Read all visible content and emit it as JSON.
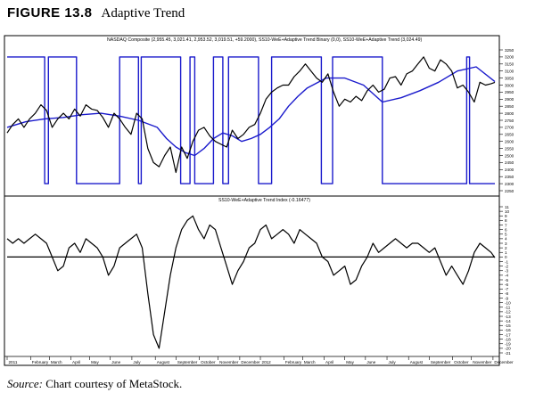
{
  "figure": {
    "number": "FIGURE 13.8",
    "caption": "Adaptive Trend"
  },
  "source": {
    "label": "Source:",
    "text": "Chart courtesy of MetaStock."
  },
  "colors": {
    "price": "#000000",
    "indicator": "#1a1acc",
    "zero_line": "#000000"
  },
  "chart_data": [
    {
      "type": "line",
      "title": "NASDAQ Composite (2,955.45, 3,021.41, 2,953.52, 3,019.51, +59.2000), SS10-WeE+Adaptive Trend Binary (0,0), SS10-WeE+Adaptive Trend (3,024.49)",
      "ylim": [
        2250,
        3250
      ],
      "yticks": [
        2250,
        2300,
        2350,
        2400,
        2450,
        2500,
        2550,
        2600,
        2650,
        2700,
        2750,
        2800,
        2850,
        2900,
        2950,
        3000,
        3050,
        3100,
        3150,
        3200,
        3250
      ],
      "xlim": [
        0,
        520
      ],
      "series": [
        {
          "name": "NASDAQ Composite",
          "x": [
            0,
            6,
            12,
            18,
            24,
            30,
            36,
            42,
            48,
            54,
            60,
            66,
            72,
            78,
            84,
            90,
            96,
            102,
            108,
            114,
            120,
            126,
            132,
            138,
            144,
            150,
            156,
            162,
            168,
            174,
            180,
            186,
            192,
            198,
            204,
            210,
            216,
            222,
            228,
            234,
            240,
            246,
            252,
            258,
            264,
            270,
            276,
            282,
            288,
            294,
            300,
            306,
            312,
            318,
            324,
            330,
            336,
            342,
            348,
            354,
            360,
            366,
            372,
            378,
            384,
            390,
            396,
            402,
            408,
            414,
            420,
            426,
            432,
            438,
            444,
            450,
            456,
            462,
            468,
            474,
            480,
            486,
            492,
            498,
            504,
            510,
            516,
            520
          ],
          "values": [
            2660,
            2720,
            2760,
            2700,
            2760,
            2800,
            2860,
            2820,
            2700,
            2760,
            2800,
            2760,
            2830,
            2780,
            2860,
            2830,
            2820,
            2770,
            2700,
            2800,
            2760,
            2700,
            2650,
            2800,
            2760,
            2550,
            2450,
            2420,
            2500,
            2560,
            2380,
            2560,
            2480,
            2600,
            2680,
            2700,
            2640,
            2600,
            2580,
            2560,
            2680,
            2620,
            2650,
            2700,
            2720,
            2800,
            2900,
            2950,
            2980,
            3000,
            3000,
            3060,
            3100,
            3150,
            3100,
            3050,
            3020,
            3080,
            2950,
            2850,
            2900,
            2880,
            2920,
            2890,
            2960,
            3000,
            2950,
            2970,
            3050,
            3060,
            3000,
            3080,
            3100,
            3150,
            3200,
            3120,
            3100,
            3180,
            3150,
            3100,
            2980,
            3000,
            2950,
            2880,
            3020,
            3000,
            3010,
            3019.51
          ]
        },
        {
          "name": "SS10-WeE+Adaptive Trend",
          "x": [
            0,
            20,
            40,
            60,
            80,
            100,
            120,
            140,
            160,
            170,
            180,
            190,
            200,
            210,
            220,
            230,
            240,
            250,
            260,
            270,
            280,
            290,
            300,
            310,
            320,
            340,
            360,
            380,
            400,
            420,
            440,
            460,
            480,
            500,
            520
          ],
          "values": [
            2700,
            2740,
            2760,
            2770,
            2790,
            2800,
            2780,
            2750,
            2700,
            2620,
            2560,
            2520,
            2500,
            2550,
            2620,
            2660,
            2640,
            2600,
            2620,
            2650,
            2700,
            2760,
            2850,
            2920,
            2980,
            3050,
            3050,
            3000,
            2880,
            2910,
            2960,
            3020,
            3100,
            3130,
            3024.49
          ]
        },
        {
          "name": "SS10-WeE+Adaptive Trend Binary",
          "x": [
            0,
            40,
            40,
            44,
            44,
            74,
            74,
            120,
            120,
            140,
            140,
            143,
            143,
            185,
            185,
            195,
            195,
            200,
            200,
            220,
            220,
            230,
            230,
            236,
            236,
            268,
            268,
            282,
            282,
            335,
            335,
            347,
            347,
            400,
            400,
            490,
            490,
            493,
            493,
            522
          ],
          "values": [
            3200,
            3200,
            2300,
            2300,
            3200,
            3200,
            2300,
            2300,
            3200,
            3200,
            2300,
            2300,
            3200,
            3200,
            2300,
            2300,
            3200,
            3200,
            2300,
            2300,
            3200,
            3200,
            2300,
            2300,
            3200,
            3200,
            2300,
            2300,
            3200,
            3200,
            2300,
            2300,
            3200,
            3200,
            2300,
            2300,
            3200,
            3200,
            2300,
            2300
          ]
        }
      ]
    },
    {
      "type": "line",
      "title": "SS10-WeE+Adaptive Trend Index (-0.16477)",
      "ylim": [
        -21,
        11
      ],
      "yticks": [
        11,
        10,
        9,
        8,
        7,
        6,
        5,
        4,
        3,
        2,
        1,
        0,
        -1,
        -2,
        -3,
        -4,
        -5,
        -6,
        -7,
        -8,
        -9,
        -10,
        -11,
        -12,
        -13,
        -14,
        -15,
        -16,
        -17,
        -18,
        -19,
        -20,
        -21
      ],
      "xlim": [
        0,
        520
      ],
      "x_tick_labels": [
        "2011",
        "February",
        "March",
        "April",
        "May",
        "June",
        "July",
        "August",
        "September",
        "October",
        "November",
        "December",
        "2012",
        "February",
        "March",
        "April",
        "May",
        "June",
        "July",
        "August",
        "September",
        "October",
        "November",
        "December",
        "2013"
      ],
      "x_tick_positions": [
        0,
        25,
        45,
        68,
        88,
        110,
        133,
        158,
        180,
        205,
        225,
        248,
        270,
        295,
        315,
        338,
        360,
        382,
        405,
        428,
        450,
        475,
        495,
        518,
        540
      ],
      "series": [
        {
          "name": "SS10-WeE+Adaptive Trend Index",
          "x": [
            0,
            6,
            12,
            18,
            24,
            30,
            36,
            42,
            48,
            54,
            60,
            66,
            72,
            78,
            84,
            90,
            96,
            102,
            108,
            114,
            120,
            126,
            132,
            138,
            144,
            150,
            156,
            162,
            168,
            174,
            180,
            186,
            192,
            198,
            204,
            210,
            216,
            222,
            228,
            234,
            240,
            246,
            252,
            258,
            264,
            270,
            276,
            282,
            288,
            294,
            300,
            306,
            312,
            318,
            324,
            330,
            336,
            342,
            348,
            354,
            360,
            366,
            372,
            378,
            384,
            390,
            396,
            402,
            408,
            414,
            420,
            426,
            432,
            438,
            444,
            450,
            456,
            462,
            468,
            474,
            480,
            486,
            492,
            498,
            504,
            510,
            516,
            520
          ],
          "values": [
            4,
            3,
            4,
            3,
            4,
            5,
            4,
            3,
            0,
            -3,
            -2,
            2,
            3,
            1,
            4,
            3,
            2,
            0,
            -4,
            -2,
            2,
            3,
            4,
            5,
            2,
            -8,
            -17,
            -20,
            -12,
            -4,
            2,
            6,
            8,
            9,
            6,
            4,
            7,
            6,
            2,
            -2,
            -6,
            -3,
            -1,
            2,
            3,
            6,
            7,
            4,
            5,
            6,
            5,
            3,
            6,
            5,
            4,
            3,
            0,
            -1,
            -4,
            -3,
            -2,
            -6,
            -5,
            -2,
            0,
            3,
            1,
            2,
            3,
            4,
            3,
            2,
            3,
            3,
            2,
            1,
            2,
            -1,
            -4,
            -2,
            -4,
            -6,
            -3,
            1,
            3,
            2,
            1,
            -0.16477
          ]
        }
      ]
    }
  ]
}
